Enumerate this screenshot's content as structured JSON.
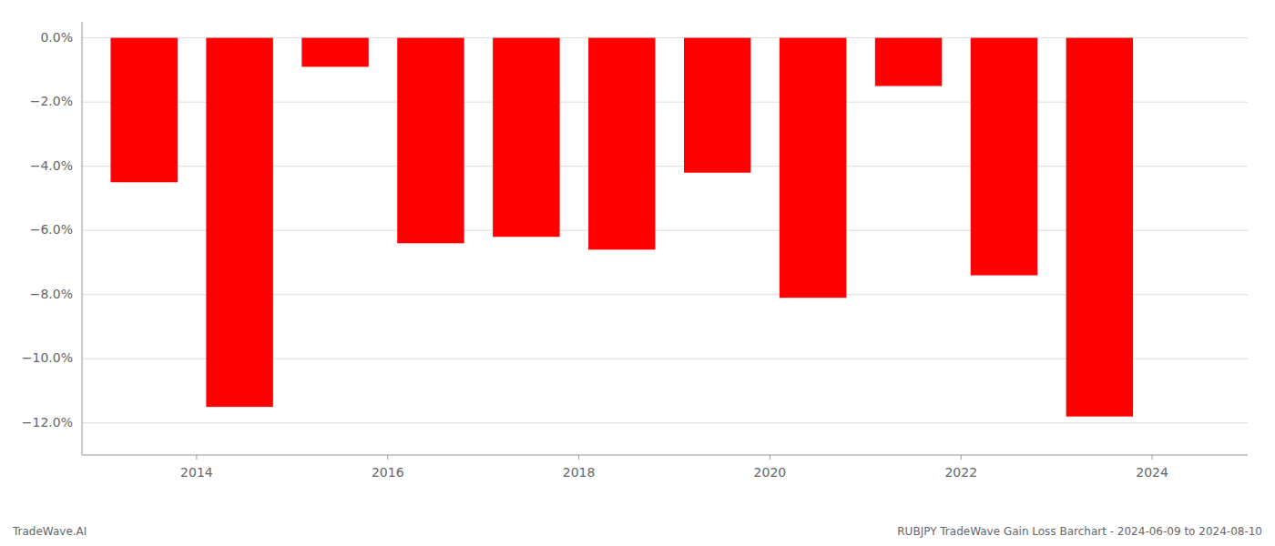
{
  "chart_data": {
    "type": "bar",
    "x": [
      2013.45,
      2014.45,
      2015.45,
      2016.45,
      2017.45,
      2018.45,
      2019.45,
      2020.45,
      2021.45,
      2022.45,
      2023.45
    ],
    "values": [
      -4.5,
      -11.5,
      -0.9,
      -6.4,
      -6.2,
      -6.6,
      -4.2,
      -8.1,
      -1.5,
      -7.4,
      -11.8
    ],
    "color": "#ff0000",
    "xlim": [
      2012.8,
      2025.0
    ],
    "xticks": [
      2014,
      2016,
      2018,
      2020,
      2022,
      2024
    ],
    "ylim": [
      -13.0,
      0.5
    ],
    "yticks": [
      {
        "value": 0.0,
        "label": "0.0%"
      },
      {
        "value": -2.0,
        "label": "−2.0%"
      },
      {
        "value": -4.0,
        "label": "−4.0%"
      },
      {
        "value": -6.0,
        "label": "−6.0%"
      },
      {
        "value": -8.0,
        "label": "−8.0%"
      },
      {
        "value": -10.0,
        "label": "−10.0%"
      },
      {
        "value": -12.0,
        "label": "−12.0%"
      }
    ],
    "grid": true,
    "annotations": [
      "TradeWave.AI",
      "RUBJPY TradeWave Gain Loss Barchart - 2024-06-09 to 2024-08-10"
    ]
  }
}
